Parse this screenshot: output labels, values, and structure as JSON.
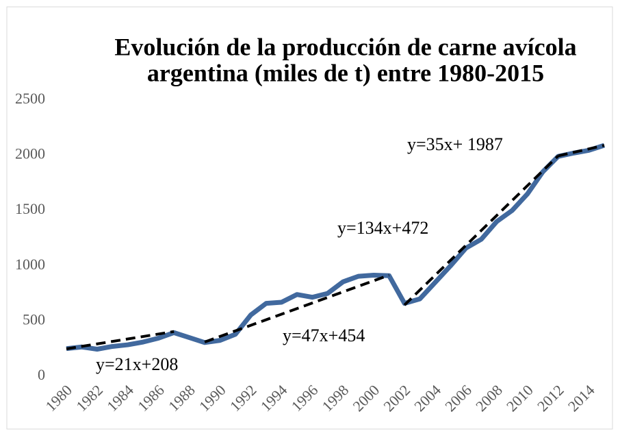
{
  "chart_data": {
    "type": "line",
    "title": "Evolución de la producción de carne avícola",
    "title_line2": "argentina (miles de t) entre 1980-2015",
    "x": [
      1980,
      1981,
      1982,
      1983,
      1984,
      1985,
      1986,
      1987,
      1988,
      1989,
      1990,
      1991,
      1992,
      1993,
      1994,
      1995,
      1996,
      1997,
      1998,
      1999,
      2000,
      2001,
      2002,
      2003,
      2004,
      2005,
      2006,
      2007,
      2008,
      2009,
      2010,
      2011,
      2012,
      2013,
      2014,
      2015
    ],
    "series": [
      {
        "color": "#41699e",
        "values": [
          250,
          265,
          245,
          270,
          285,
          310,
          345,
          395,
          350,
          305,
          325,
          380,
          555,
          660,
          670,
          740,
          715,
          750,
          855,
          905,
          915,
          910,
          660,
          700,
          850,
          1000,
          1160,
          1240,
          1400,
          1500,
          1650,
          1850,
          1990,
          2020,
          2045,
          2090
        ]
      }
    ],
    "trend_lines": [
      {
        "label": "y=21x+208",
        "x": [
          1980,
          1987
        ],
        "values": [
          248,
          405
        ]
      },
      {
        "label": "y=47x+454",
        "x": [
          1989,
          2001
        ],
        "values": [
          310,
          915
        ]
      },
      {
        "label": "y=134x+472",
        "x": [
          2002,
          2012
        ],
        "values": [
          645,
          1995
        ]
      },
      {
        "label": "y=35x+ 1987",
        "x": [
          2012,
          2015
        ],
        "values": [
          1995,
          2090
        ]
      }
    ],
    "trend_color": "#000000",
    "xlim": [
      1980,
      2015
    ],
    "xticks": [
      1980,
      1982,
      1984,
      1986,
      1988,
      1990,
      1992,
      1994,
      1996,
      1998,
      2000,
      2002,
      2004,
      2006,
      2008,
      2010,
      2012,
      2014
    ],
    "ylim": [
      0,
      2500
    ],
    "yticks": [
      0,
      500,
      1000,
      1500,
      2000,
      2500
    ],
    "grid": false
  }
}
